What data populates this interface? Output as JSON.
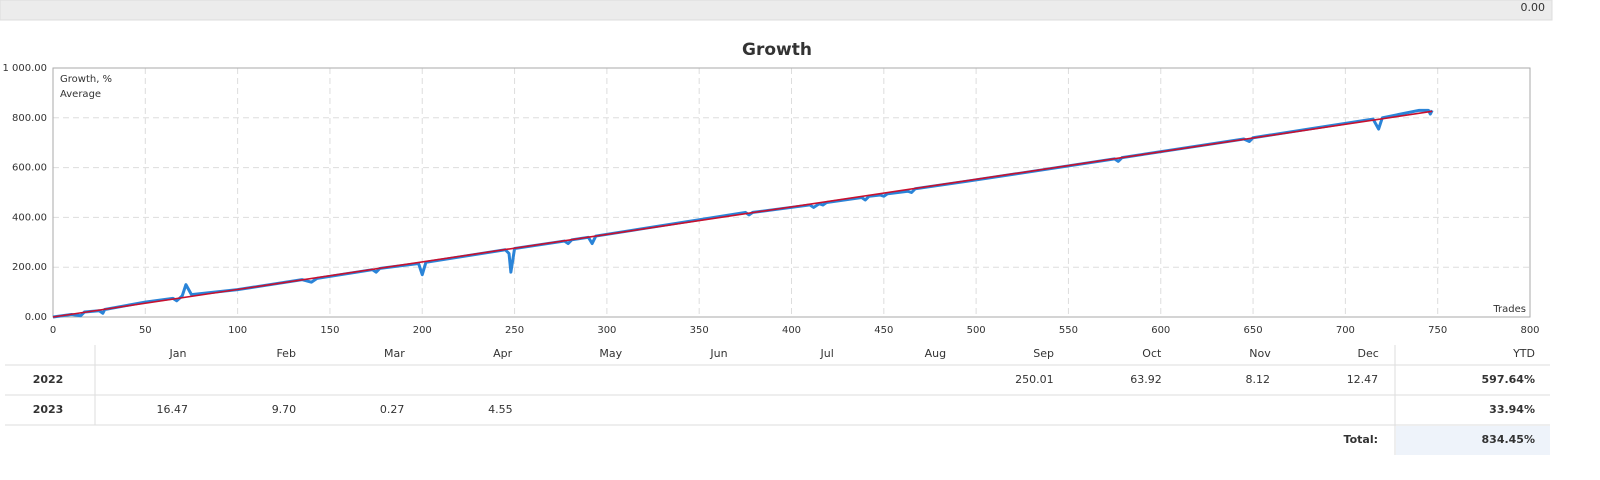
{
  "header_value": "0.00",
  "chart_data": {
    "type": "line",
    "title": "Growth",
    "x_label": "Trades",
    "xlim": [
      0,
      800
    ],
    "xticks": [
      0,
      50,
      100,
      150,
      200,
      250,
      300,
      350,
      400,
      450,
      500,
      550,
      600,
      650,
      700,
      750,
      800
    ],
    "ylim": [
      0,
      1000
    ],
    "yticks": [
      {
        "value": 0,
        "label": "0.00"
      },
      {
        "value": 200,
        "label": "200.00"
      },
      {
        "value": 400,
        "label": "400.00"
      },
      {
        "value": 600,
        "label": "600.00"
      },
      {
        "value": 800,
        "label": "800.00"
      },
      {
        "value": 1000,
        "label": "1 000.00"
      }
    ],
    "grid": true,
    "legend": "top-left",
    "series": [
      {
        "name": "Growth, %",
        "color": "#2a84d8",
        "x": [
          0,
          10,
          15,
          17,
          25,
          27,
          28,
          50,
          65,
          67,
          70,
          72,
          75,
          100,
          135,
          140,
          143,
          173,
          175,
          177,
          198,
          200,
          202,
          245,
          247,
          248,
          250,
          277,
          279,
          281,
          290,
          292,
          294,
          375,
          377,
          379,
          410,
          412,
          415,
          417,
          419,
          438,
          440,
          442,
          448,
          450,
          452,
          463,
          465,
          467,
          495,
          575,
          577,
          579,
          645,
          648,
          650,
          715,
          718,
          720,
          740,
          745,
          746,
          747
        ],
        "values": [
          0,
          10,
          5,
          20,
          25,
          15,
          30,
          60,
          75,
          65,
          85,
          130,
          90,
          110,
          150,
          140,
          155,
          190,
          180,
          195,
          215,
          170,
          220,
          270,
          255,
          180,
          275,
          305,
          295,
          310,
          320,
          295,
          325,
          420,
          410,
          420,
          450,
          440,
          455,
          450,
          460,
          480,
          470,
          485,
          490,
          485,
          495,
          505,
          500,
          515,
          545,
          635,
          625,
          640,
          715,
          705,
          720,
          795,
          755,
          800,
          830,
          830,
          815,
          830
        ]
      },
      {
        "name": "Average",
        "color": "#c8102e",
        "x": [
          0,
          747
        ],
        "values": [
          0,
          826
        ]
      }
    ]
  },
  "table": {
    "columns": [
      "Jan",
      "Feb",
      "Mar",
      "Apr",
      "May",
      "Jun",
      "Jul",
      "Aug",
      "Sep",
      "Oct",
      "Nov",
      "Dec",
      "YTD"
    ],
    "rows": [
      {
        "year": "2022",
        "months": [
          null,
          null,
          null,
          null,
          null,
          null,
          null,
          null,
          "250.01",
          "63.92",
          "8.12",
          "12.47"
        ],
        "ytd": "597.64%"
      },
      {
        "year": "2023",
        "months": [
          "16.47",
          "9.70",
          "0.27",
          "4.55",
          null,
          null,
          null,
          null,
          null,
          null,
          null,
          null
        ],
        "ytd": "33.94%"
      }
    ],
    "total_label": "Total:",
    "total": "834.45%"
  }
}
